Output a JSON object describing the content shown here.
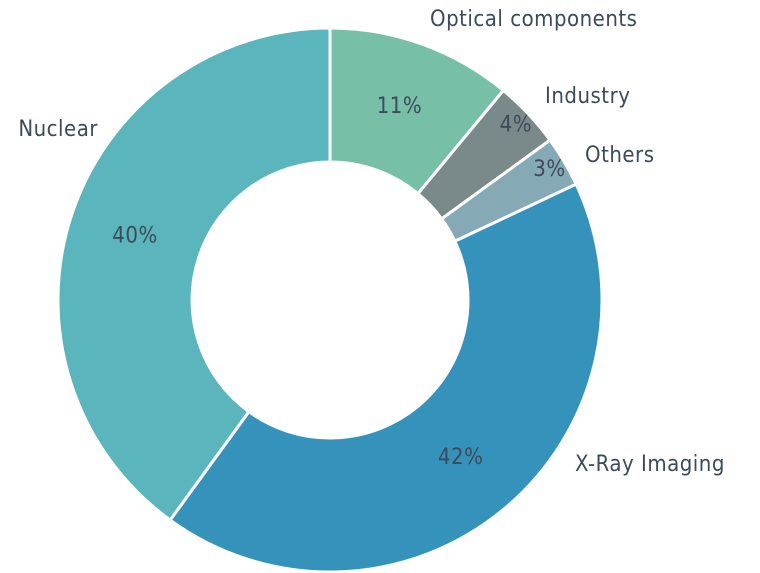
{
  "chart_data": {
    "type": "donut",
    "categories": [
      "Optical components",
      "Industry",
      "Others",
      "X-Ray Imaging",
      "Nuclear"
    ],
    "values": [
      11,
      4,
      3,
      42,
      40
    ],
    "value_labels": [
      "11%",
      "4%",
      "3%",
      "42%",
      "40%"
    ],
    "colors": [
      "#77bfa6",
      "#7a8a8a",
      "#86aab5",
      "#3593bb",
      "#5ab5bd"
    ]
  }
}
